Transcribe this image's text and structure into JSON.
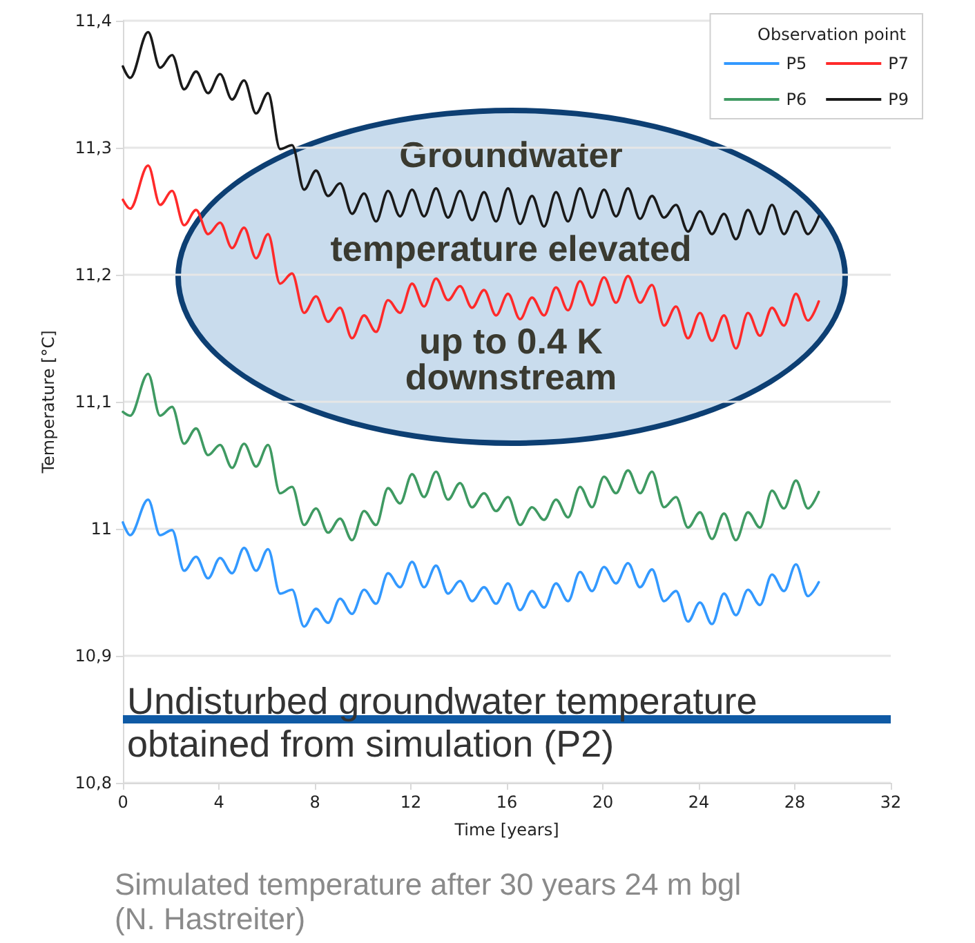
{
  "chart_data": {
    "type": "line",
    "xlabel": "Time [years]",
    "ylabel": "Temperature [°C]",
    "legend_title": "Observation point",
    "x": [
      0,
      0.3,
      1.05,
      1.55,
      2.05,
      2.55,
      3.05,
      3.55,
      4.05,
      4.55,
      5.05,
      5.55,
      6.05,
      6.55,
      7.05,
      7.55,
      8.05,
      8.55,
      9.05,
      9.55,
      10.05,
      10.55,
      11.05,
      11.55,
      12.05,
      12.55,
      13.05,
      13.55,
      14.05,
      14.55,
      15.05,
      15.55,
      16.05,
      16.55,
      17.05,
      17.55,
      18.05,
      18.55,
      19.05,
      19.55,
      20.05,
      20.55,
      21.05,
      21.55,
      22.05,
      22.55,
      23.05,
      23.55,
      24.05,
      24.55,
      25.05,
      25.55,
      26.05,
      26.55,
      27.05,
      27.55,
      28.05,
      28.55,
      29
    ],
    "series": [
      {
        "name": "P5",
        "color": "#3399ff",
        "values": [
          11.005,
          10.995,
          11.023,
          10.995,
          10.999,
          10.967,
          10.978,
          10.961,
          10.977,
          10.965,
          10.985,
          10.967,
          10.984,
          10.949,
          10.952,
          10.923,
          10.937,
          10.926,
          10.945,
          10.933,
          10.952,
          10.941,
          10.965,
          10.954,
          10.974,
          10.954,
          10.971,
          10.949,
          10.959,
          10.943,
          10.954,
          10.941,
          10.957,
          10.936,
          10.951,
          10.938,
          10.957,
          10.943,
          10.966,
          10.951,
          10.97,
          10.957,
          10.973,
          10.954,
          10.968,
          10.943,
          10.951,
          10.927,
          10.942,
          10.925,
          10.949,
          10.932,
          10.952,
          10.94,
          10.964,
          10.951,
          10.972,
          10.947,
          10.958
        ]
      },
      {
        "name": "P6",
        "color": "#3f9a62",
        "values": [
          11.092,
          11.089,
          11.122,
          11.089,
          11.096,
          11.067,
          11.079,
          11.058,
          11.066,
          11.048,
          11.067,
          11.049,
          11.066,
          11.028,
          11.033,
          11.003,
          11.016,
          10.997,
          11.008,
          10.991,
          11.014,
          11.003,
          11.032,
          11.02,
          11.043,
          11.025,
          11.045,
          11.023,
          11.036,
          11.017,
          11.028,
          11.014,
          11.025,
          11.003,
          11.017,
          11.007,
          11.023,
          11.009,
          11.033,
          11.017,
          11.041,
          11.028,
          11.046,
          11.028,
          11.045,
          11.017,
          11.025,
          11.001,
          11.013,
          10.992,
          11.012,
          10.991,
          11.013,
          11.001,
          11.03,
          11.016,
          11.038,
          11.016,
          11.029
        ]
      },
      {
        "name": "P7",
        "color": "#ff2a2a",
        "values": [
          11.259,
          11.252,
          11.286,
          11.255,
          11.266,
          11.239,
          11.251,
          11.232,
          11.241,
          11.221,
          11.237,
          11.213,
          11.232,
          11.193,
          11.201,
          11.17,
          11.183,
          11.163,
          11.174,
          11.15,
          11.168,
          11.155,
          11.18,
          11.17,
          11.193,
          11.175,
          11.197,
          11.18,
          11.191,
          11.174,
          11.188,
          11.168,
          11.185,
          11.165,
          11.182,
          11.168,
          11.19,
          11.172,
          11.195,
          11.176,
          11.198,
          11.178,
          11.199,
          11.178,
          11.192,
          11.16,
          11.175,
          11.15,
          11.17,
          11.148,
          11.168,
          11.142,
          11.17,
          11.152,
          11.174,
          11.16,
          11.185,
          11.164,
          11.179
        ]
      },
      {
        "name": "P9",
        "color": "#1a1a1a",
        "values": [
          11.364,
          11.355,
          11.391,
          11.363,
          11.373,
          11.346,
          11.36,
          11.343,
          11.358,
          11.338,
          11.353,
          11.327,
          11.343,
          11.299,
          11.302,
          11.267,
          11.282,
          11.262,
          11.272,
          11.248,
          11.264,
          11.242,
          11.266,
          11.246,
          11.267,
          11.246,
          11.268,
          11.245,
          11.266,
          11.243,
          11.265,
          11.242,
          11.268,
          11.24,
          11.262,
          11.238,
          11.265,
          11.242,
          11.268,
          11.245,
          11.267,
          11.246,
          11.268,
          11.244,
          11.262,
          11.245,
          11.255,
          11.234,
          11.25,
          11.232,
          11.248,
          11.228,
          11.251,
          11.232,
          11.255,
          11.232,
          11.25,
          11.232,
          11.246
        ]
      }
    ],
    "xlim": [
      0,
      32
    ],
    "xticks": [
      0,
      4,
      8,
      12,
      16,
      20,
      24,
      28,
      32
    ],
    "ylim": [
      10.8,
      11.4
    ],
    "yticks": [
      {
        "value": 10.8,
        "label": "10,8"
      },
      {
        "value": 10.9,
        "label": "10,9"
      },
      11,
      {
        "value": 11.1,
        "label": "11,1"
      },
      {
        "value": 11.2,
        "label": "11,2"
      },
      {
        "value": 11.3,
        "label": "11,3"
      },
      {
        "value": 11.4,
        "label": "11,4"
      }
    ],
    "ref_lines": [
      {
        "axis": "y",
        "value": 10.85,
        "label": "Undisturbed groundwater temperature obtained from simulation (P2)",
        "color": "#0f5aa5"
      }
    ],
    "annotations": [
      "Groundwater temperature elevated up to 0.4 K downstream",
      "Simulated temperature after 30 years 24 m bgl (N. Hastreiter)"
    ],
    "grid": "y",
    "legend": "top right",
    "marker": "none",
    "line_style": "solid"
  }
}
